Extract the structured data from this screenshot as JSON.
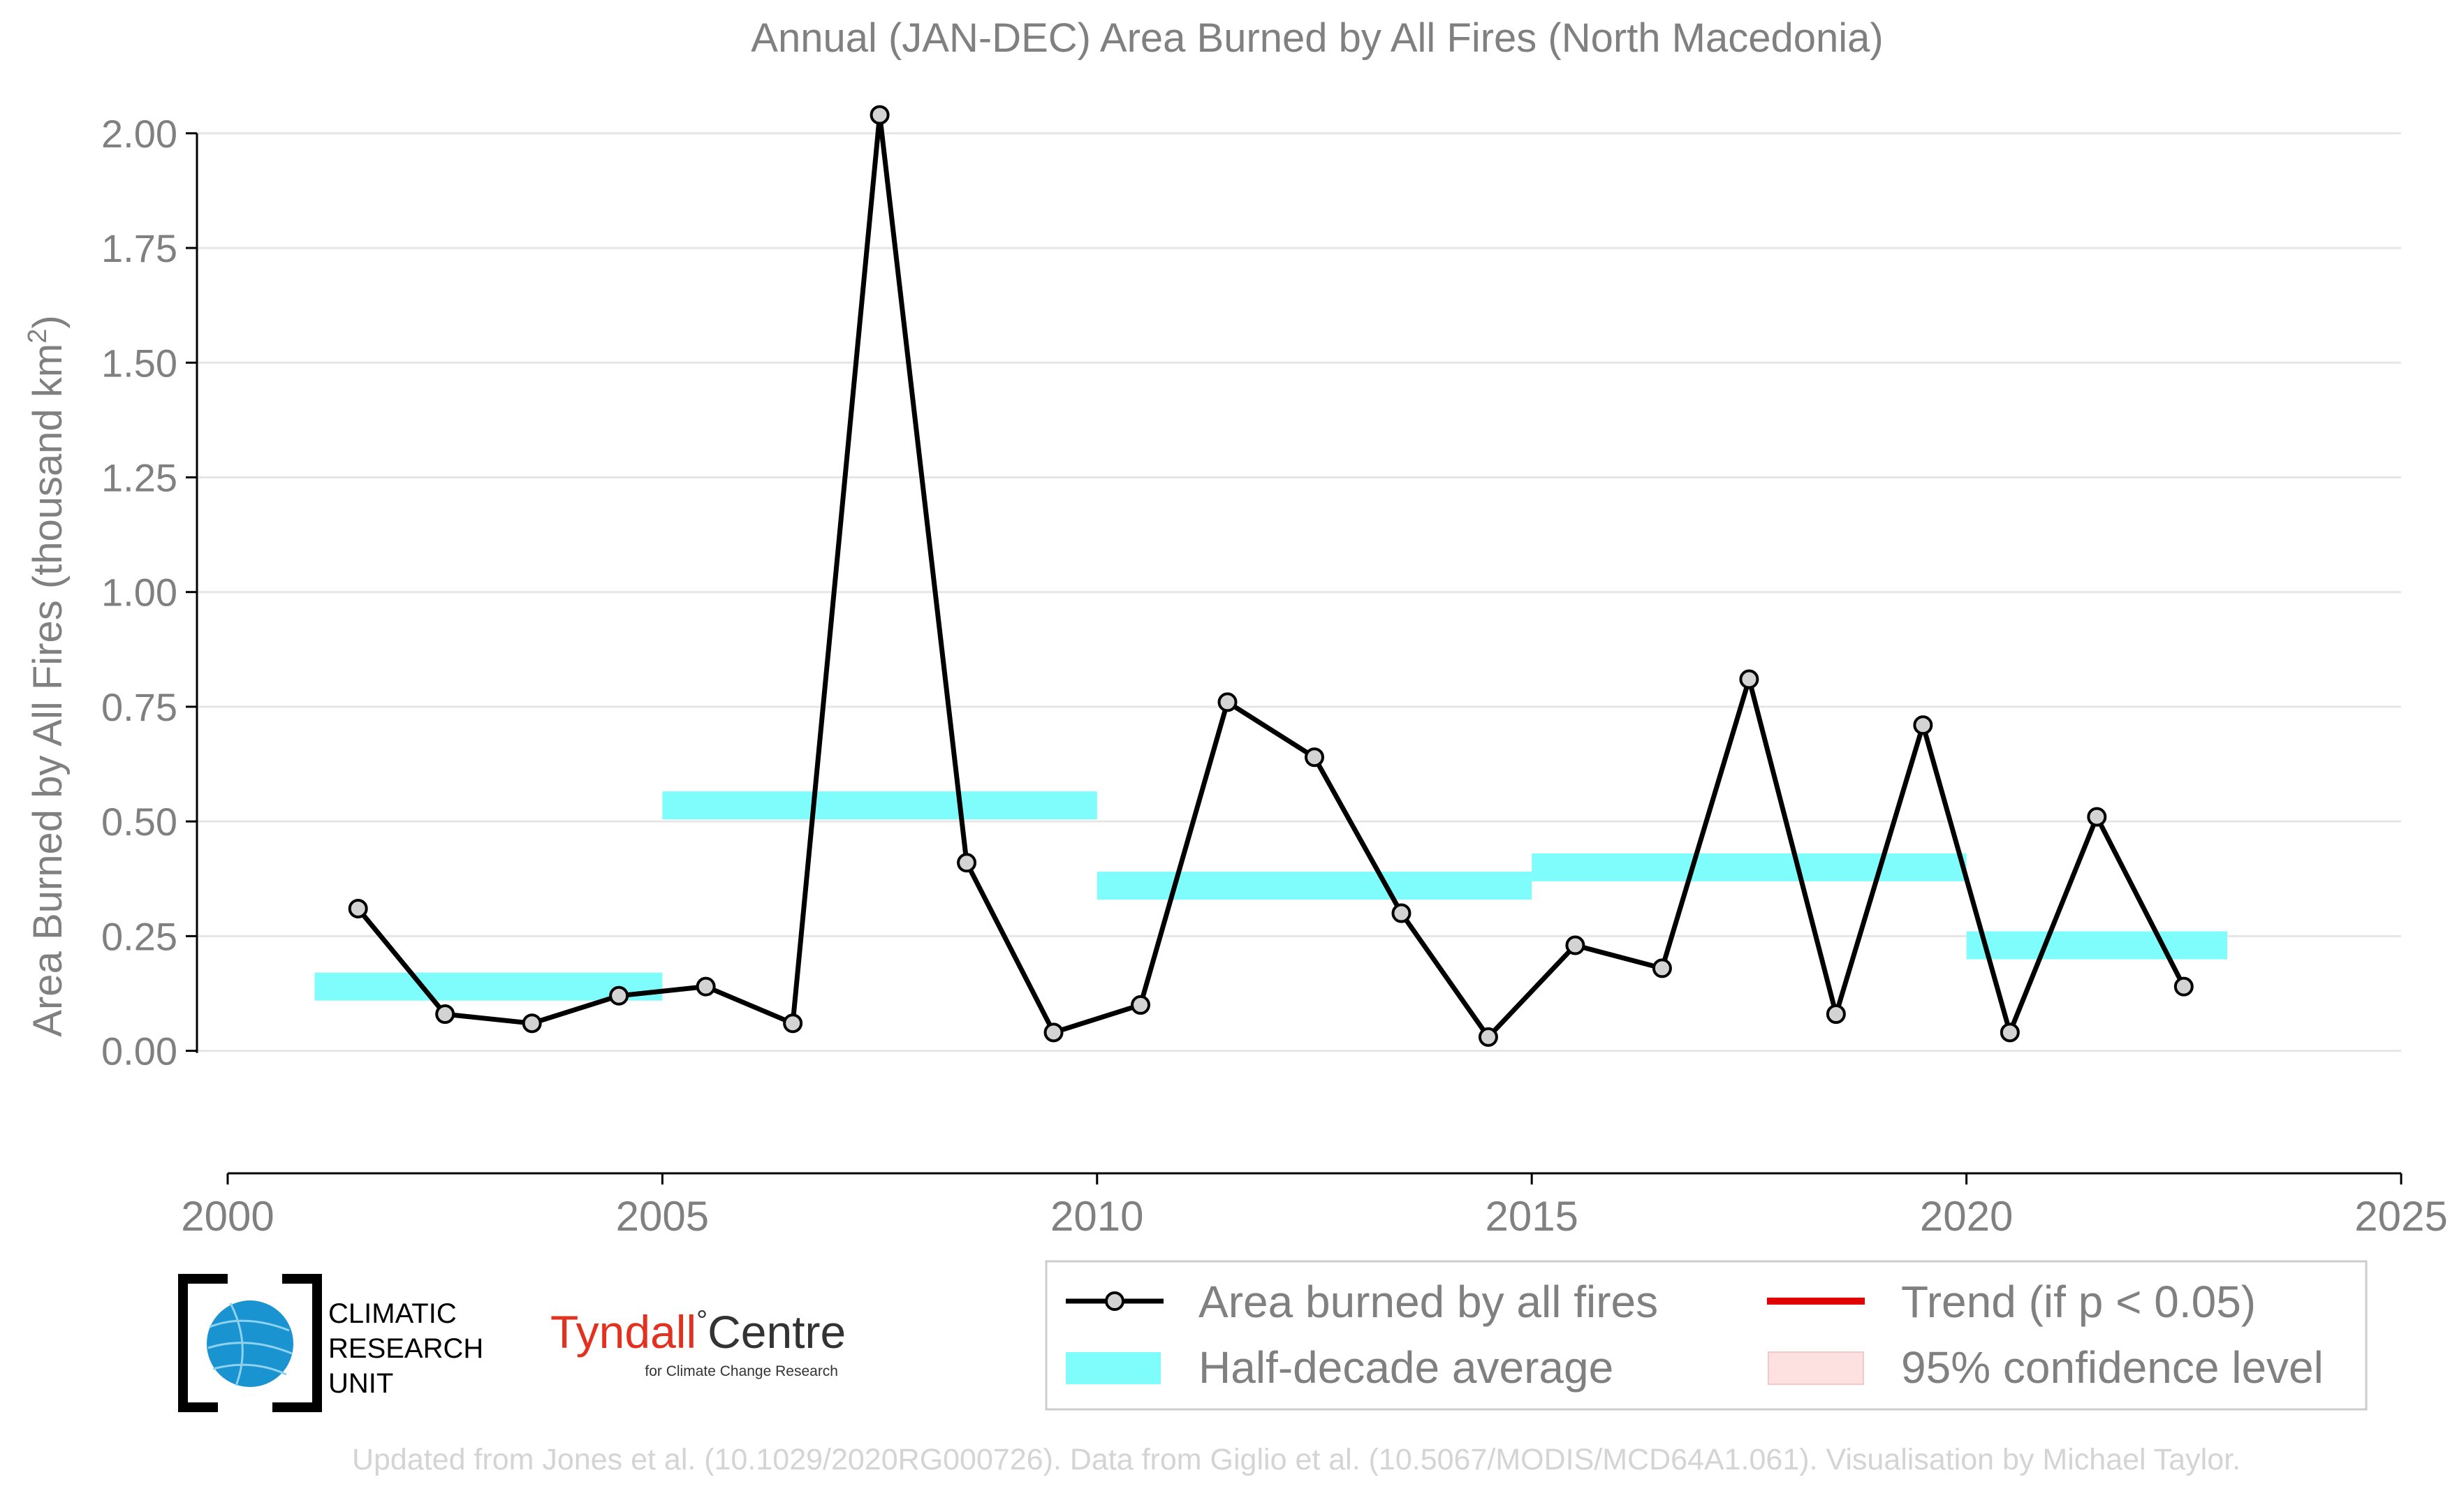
{
  "chart_data": {
    "type": "line",
    "title": "Annual (JAN-DEC) Area Burned by All Fires (North Macedonia)",
    "xlabel": "",
    "ylabel": "Area Burned by All Fires (thousand km",
    "ylabel_sup": "2",
    "ylabel_end": ")",
    "xlim": [
      2000,
      2025
    ],
    "ylim": [
      -0.13,
      2.05
    ],
    "x_ticks": [
      2000,
      2005,
      2010,
      2015,
      2020,
      2025
    ],
    "x_tick_labels": [
      "2000",
      "2005",
      "2010",
      "2015",
      "2020",
      "2025"
    ],
    "y_ticks": [
      0,
      0.25,
      0.5,
      0.75,
      1.0,
      1.25,
      1.5,
      1.75,
      2.0
    ],
    "y_tick_labels": [
      "0.00",
      "0.25",
      "0.50",
      "0.75",
      "1.00",
      "1.25",
      "1.50",
      "1.75",
      "2.00"
    ],
    "grid": "horizontal",
    "legend_position": "bottom-right",
    "series": [
      {
        "name": "Area burned by all fires",
        "color": "#000000",
        "marker_fill": "#d3d3d3",
        "x": [
          2001.5,
          2002.5,
          2003.5,
          2004.5,
          2005.5,
          2006.5,
          2007.5,
          2008.5,
          2009.5,
          2010.5,
          2011.5,
          2012.5,
          2013.5,
          2014.5,
          2015.5,
          2016.5,
          2017.5,
          2018.5,
          2019.5,
          2020.5,
          2021.5,
          2022.5
        ],
        "y": [
          0.31,
          0.08,
          0.06,
          0.12,
          0.14,
          0.06,
          2.04,
          0.41,
          0.04,
          0.1,
          0.76,
          0.64,
          0.3,
          0.03,
          0.23,
          0.18,
          0.81,
          0.08,
          0.71,
          0.04,
          0.51,
          0.14
        ]
      }
    ],
    "half_decade_averages": {
      "name": "Half-decade average",
      "color": "#7ffcfc",
      "segments": [
        {
          "x_start": 2001,
          "x_end": 2005,
          "value": 0.14
        },
        {
          "x_start": 2005,
          "x_end": 2010,
          "value": 0.535
        },
        {
          "x_start": 2010,
          "x_end": 2015,
          "value": 0.36
        },
        {
          "x_start": 2015,
          "x_end": 2020,
          "value": 0.4
        },
        {
          "x_start": 2020,
          "x_end": 2023,
          "value": 0.23
        }
      ]
    },
    "legend": [
      {
        "label": "Area burned by all fires",
        "kind": "line-marker",
        "color": "#000000"
      },
      {
        "label": "Trend (if p < 0.05)",
        "kind": "line",
        "color": "#e00000"
      },
      {
        "label": "Half-decade average",
        "kind": "band",
        "color": "#7ffcfc"
      },
      {
        "label": "95% confidence level",
        "kind": "band",
        "color": "#fde0e0"
      }
    ]
  },
  "footer": {
    "credit": "Updated from Jones et al. (10.1029/2020RG000726). Data from Giglio et al. (10.5067/MODIS/MCD64A1.061). Visualisation by Michael Taylor."
  },
  "logos": {
    "cru_line1": "CLIMATIC",
    "cru_line2": "RESEARCH",
    "cru_line3": "UNIT",
    "tyndall_main": "Tyndall",
    "tyndall_degree": "°",
    "tyndall_centre": "Centre",
    "tyndall_sub": "for Climate Change Research"
  }
}
